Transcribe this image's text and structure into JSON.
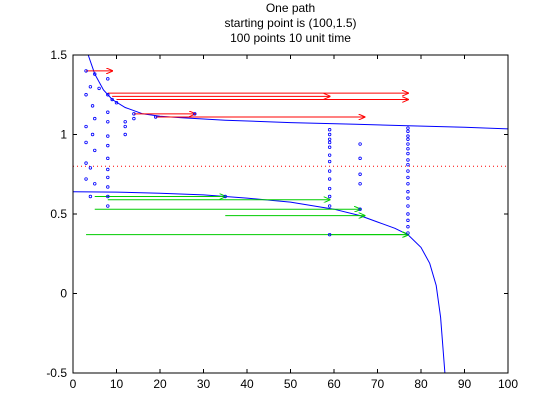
{
  "chart_data": {
    "type": "scatter",
    "title_lines": [
      "One path",
      "starting point is (100,1.5)",
      "100 points 10 unit time"
    ],
    "xlabel": "",
    "ylabel": "",
    "xlim": [
      0,
      100
    ],
    "ylim": [
      -0.5,
      1.5
    ],
    "x_ticks": [
      0,
      10,
      20,
      30,
      40,
      50,
      60,
      70,
      80,
      90,
      100
    ],
    "y_ticks": [
      -0.5,
      0,
      0.5,
      1,
      1.5
    ],
    "y_tick_labels": [
      "-0.5",
      "0",
      "0.5",
      "1",
      "1.5"
    ],
    "grid": false,
    "colors": {
      "upper_curve": "#0000ff",
      "lower_curve": "#0000ff",
      "red_arrows": "#ff0000",
      "green_arrows": "#00cc00",
      "points": "#0000ff",
      "threshold": "#ff0000"
    },
    "threshold_line": {
      "y": 0.8,
      "style": "dotted"
    },
    "curves": [
      {
        "id": "upper",
        "points": [
          [
            3.5,
            1.5
          ],
          [
            5,
            1.38
          ],
          [
            7,
            1.28
          ],
          [
            9,
            1.22
          ],
          [
            12,
            1.17
          ],
          [
            16,
            1.13
          ],
          [
            20,
            1.115
          ],
          [
            25,
            1.105
          ],
          [
            35,
            1.09
          ],
          [
            50,
            1.075
          ],
          [
            65,
            1.065
          ],
          [
            77,
            1.055
          ],
          [
            90,
            1.045
          ],
          [
            100,
            1.035
          ]
        ]
      },
      {
        "id": "lower",
        "points": [
          [
            0,
            0.64
          ],
          [
            10,
            0.638
          ],
          [
            20,
            0.63
          ],
          [
            30,
            0.62
          ],
          [
            40,
            0.6
          ],
          [
            50,
            0.575
          ],
          [
            60,
            0.53
          ],
          [
            66,
            0.49
          ],
          [
            70,
            0.45
          ],
          [
            74,
            0.41
          ],
          [
            77,
            0.37
          ],
          [
            80,
            0.29
          ],
          [
            82,
            0.19
          ],
          [
            83.5,
            0.05
          ],
          [
            84.5,
            -0.15
          ],
          [
            85.5,
            -0.5
          ]
        ]
      }
    ],
    "arrows": [
      {
        "color": "red",
        "from": [
          3,
          1.4
        ],
        "to": [
          9,
          1.4
        ]
      },
      {
        "color": "red",
        "from": [
          8,
          1.26
        ],
        "to": [
          77,
          1.26
        ]
      },
      {
        "color": "red",
        "from": [
          9,
          1.24
        ],
        "to": [
          59,
          1.24
        ]
      },
      {
        "color": "red",
        "from": [
          10,
          1.22
        ],
        "to": [
          77,
          1.22
        ]
      },
      {
        "color": "red",
        "from": [
          14,
          1.13
        ],
        "to": [
          28,
          1.13
        ]
      },
      {
        "color": "red",
        "from": [
          19,
          1.11
        ],
        "to": [
          67,
          1.11
        ]
      },
      {
        "color": "green",
        "from": [
          5,
          0.61
        ],
        "to": [
          35,
          0.61
        ]
      },
      {
        "color": "green",
        "from": [
          8,
          0.59
        ],
        "to": [
          59,
          0.59
        ]
      },
      {
        "color": "green",
        "from": [
          5,
          0.53
        ],
        "to": [
          66,
          0.53
        ]
      },
      {
        "color": "green",
        "from": [
          35,
          0.49
        ],
        "to": [
          67,
          0.49
        ]
      },
      {
        "color": "green",
        "from": [
          3,
          0.37
        ],
        "to": [
          77,
          0.37
        ]
      },
      {
        "color": "green",
        "from": [
          59,
          0.37
        ],
        "to": [
          77,
          0.37
        ]
      }
    ],
    "points": [
      [
        3,
        1.4
      ],
      [
        4,
        1.3
      ],
      [
        3,
        1.25
      ],
      [
        4.5,
        1.18
      ],
      [
        5,
        1.1
      ],
      [
        3,
        1.05
      ],
      [
        4.5,
        1.0
      ],
      [
        3,
        0.95
      ],
      [
        5,
        0.9
      ],
      [
        3,
        0.82
      ],
      [
        4,
        0.79
      ],
      [
        3,
        0.72
      ],
      [
        5,
        0.69
      ],
      [
        4,
        0.61
      ],
      [
        5,
        1.38
      ],
      [
        6,
        1.29
      ],
      [
        8,
        1.35
      ],
      [
        8,
        1.25
      ],
      [
        9,
        1.22
      ],
      [
        8,
        1.14
      ],
      [
        8,
        1.08
      ],
      [
        8,
        0.99
      ],
      [
        8,
        0.93
      ],
      [
        8,
        0.85
      ],
      [
        8,
        0.78
      ],
      [
        8,
        0.73
      ],
      [
        8,
        0.67
      ],
      [
        8,
        0.61
      ],
      [
        8,
        0.55
      ],
      [
        10,
        1.2
      ],
      [
        12,
        1.08
      ],
      [
        12,
        1.05
      ],
      [
        12,
        1.0
      ],
      [
        14,
        1.13
      ],
      [
        14,
        1.1
      ],
      [
        19,
        1.11
      ],
      [
        28,
        1.13
      ],
      [
        35,
        0.61
      ],
      [
        59,
        1.03
      ],
      [
        59,
        1.0
      ],
      [
        59,
        0.97
      ],
      [
        59,
        0.95
      ],
      [
        59,
        0.92
      ],
      [
        59,
        0.87
      ],
      [
        59,
        0.83
      ],
      [
        59,
        0.77
      ],
      [
        59,
        0.72
      ],
      [
        59,
        0.66
      ],
      [
        59,
        0.61
      ],
      [
        59,
        0.55
      ],
      [
        59,
        0.37
      ],
      [
        66,
        0.94
      ],
      [
        66,
        0.85
      ],
      [
        66,
        0.75
      ],
      [
        66,
        0.69
      ],
      [
        66,
        0.53
      ],
      [
        77,
        1.04
      ],
      [
        77,
        1.02
      ],
      [
        77,
        0.99
      ],
      [
        77,
        0.97
      ],
      [
        77,
        0.94
      ],
      [
        77,
        0.91
      ],
      [
        77,
        0.88
      ],
      [
        77,
        0.84
      ],
      [
        77,
        0.81
      ],
      [
        77,
        0.77
      ],
      [
        77,
        0.73
      ],
      [
        77,
        0.69
      ],
      [
        77,
        0.64
      ],
      [
        77,
        0.6
      ],
      [
        77,
        0.55
      ],
      [
        77,
        0.5
      ],
      [
        77,
        0.46
      ],
      [
        77,
        0.42
      ],
      [
        77,
        0.38
      ]
    ]
  }
}
